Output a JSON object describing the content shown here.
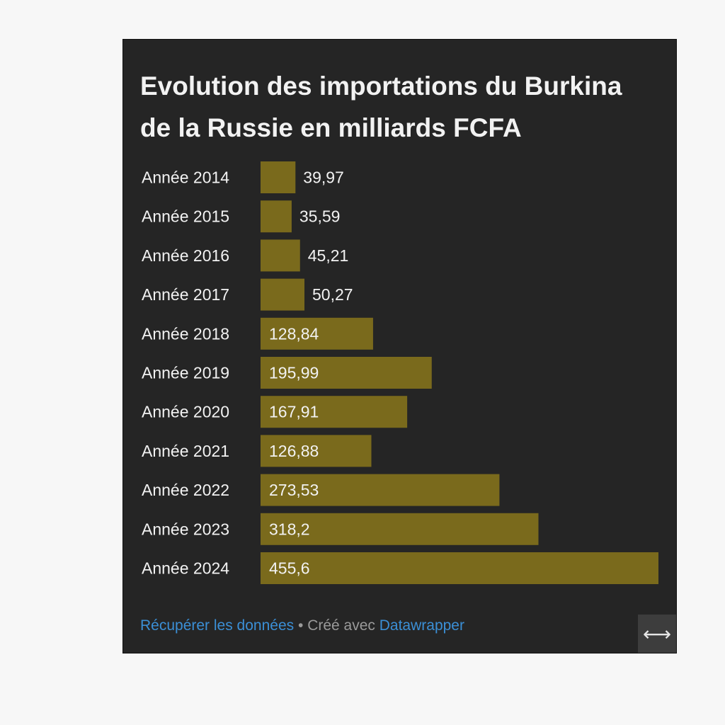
{
  "chart_data": {
    "type": "bar",
    "orientation": "horizontal",
    "title": "Evolution des importations du Burkina\nde la Russie en milliards FCFA",
    "categories": [
      "Année 2014",
      "Année 2015",
      "Année 2016",
      "Année 2017",
      "Année 2018",
      "Année 2019",
      "Année 2020",
      "Année 2021",
      "Année 2022",
      "Année 2023",
      "Année 2024"
    ],
    "values": [
      39.97,
      35.59,
      45.21,
      50.27,
      128.84,
      195.99,
      167.91,
      126.88,
      273.53,
      318.2,
      455.6
    ],
    "value_labels": [
      "39,97",
      "35,59",
      "45,21",
      "50,27",
      "128,84",
      "195,99",
      "167,91",
      "126,88",
      "273,53",
      "318,2",
      "455,6"
    ],
    "xlim": [
      0,
      455.6
    ],
    "bar_color": "#7a6a1c",
    "grid": false,
    "legend": "none"
  },
  "footer": {
    "get_data_link": "Récupérer les données",
    "separator": "•",
    "created_with": "Créé avec",
    "tool_link": "Datawrapper"
  },
  "controls": {
    "resize_icon": "horizontal-resize-icon",
    "resize_glyph": "⟷"
  },
  "colors": {
    "background": "#252525",
    "text": "#f2f2f2",
    "link": "#3b8fd6",
    "muted": "#9a9a9a"
  }
}
